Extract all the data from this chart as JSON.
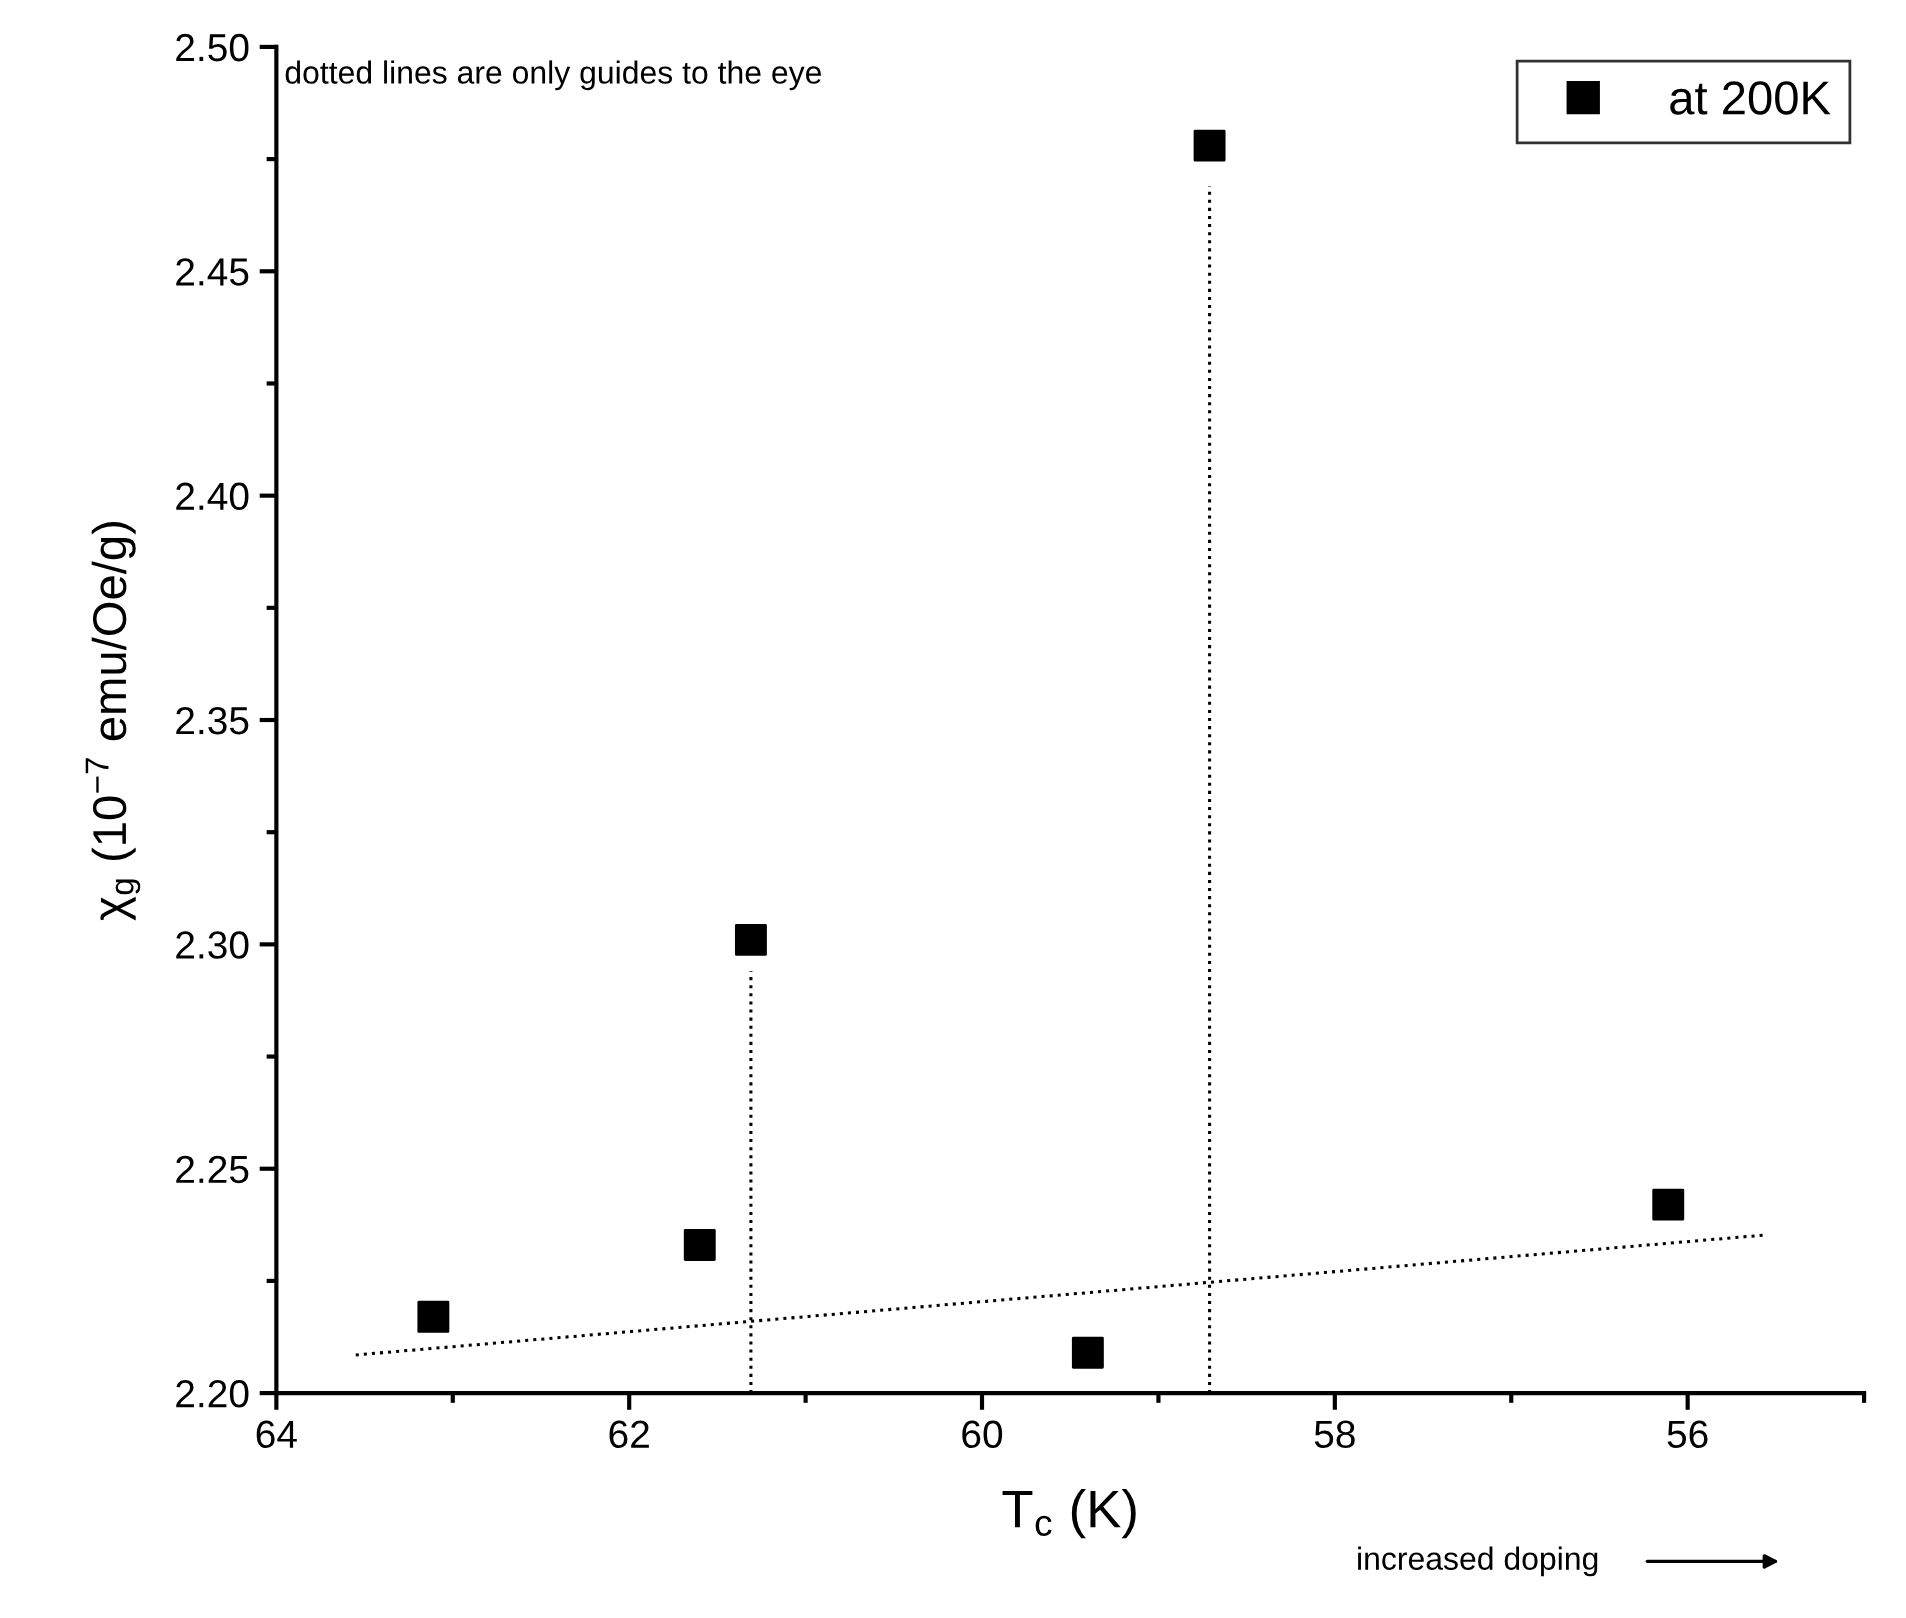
{
  "chart_data": {
    "type": "scatter",
    "xlabel": "T$_{c}$ (K)",
    "ylabel": "χ$_{g}$ (10$^{−7}$ emu/Oe/g)",
    "annotations": [
      "dotted lines are only guides to the eye",
      "increased doping"
    ],
    "series": [
      {
        "name": "at 200K",
        "color": "#000000",
        "marker": "square",
        "x": [
          63.11,
          61.6,
          61.31,
          59.4,
          58.71,
          56.11
        ],
        "values": [
          2.217,
          2.233,
          2.301,
          2.209,
          2.478,
          2.242
        ]
      },
      {
        "type": "line",
        "color": "#000000",
        "marker": "none",
        "line_style": "dotted",
        "x": [
          63.55,
          55.57
        ],
        "values": [
          2.2085,
          2.2352
        ]
      },
      {
        "type": "line",
        "color": "#000000",
        "marker": "none",
        "line_style": "dotted",
        "x": [
          61.31,
          61.31
        ],
        "values": [
          2.2,
          2.294
        ]
      },
      {
        "type": "line",
        "color": "#000000",
        "marker": "none",
        "line_style": "dotted",
        "x": [
          58.71,
          58.71
        ],
        "values": [
          2.2,
          2.469
        ]
      }
    ],
    "xlim": [
      64,
      55
    ],
    "xticks": [
      64,
      {
        "value": 63,
        "label": null
      },
      62,
      {
        "value": 61,
        "label": null
      },
      60,
      {
        "value": 59,
        "label": null
      },
      58,
      {
        "value": 57,
        "label": null
      },
      56,
      {
        "value": 55,
        "label": null
      }
    ],
    "ylim": [
      2.2,
      2.5
    ],
    "yticks": [
      {
        "value": 2.2,
        "label": "2.20"
      },
      {
        "value": 2.225,
        "label": null
      },
      {
        "value": 2.25,
        "label": "2.25"
      },
      {
        "value": 2.275,
        "label": null
      },
      {
        "value": 2.3,
        "label": "2.30"
      },
      {
        "value": 2.325,
        "label": null
      },
      {
        "value": 2.35,
        "label": "2.35"
      },
      {
        "value": 2.375,
        "label": null
      },
      {
        "value": 2.4,
        "label": "2.40"
      },
      {
        "value": 2.425,
        "label": null
      },
      {
        "value": 2.45,
        "label": "2.45"
      },
      {
        "value": 2.475,
        "label": null
      },
      {
        "value": 2.5,
        "label": "2.50"
      }
    ],
    "grid": false,
    "legend": "top right"
  }
}
